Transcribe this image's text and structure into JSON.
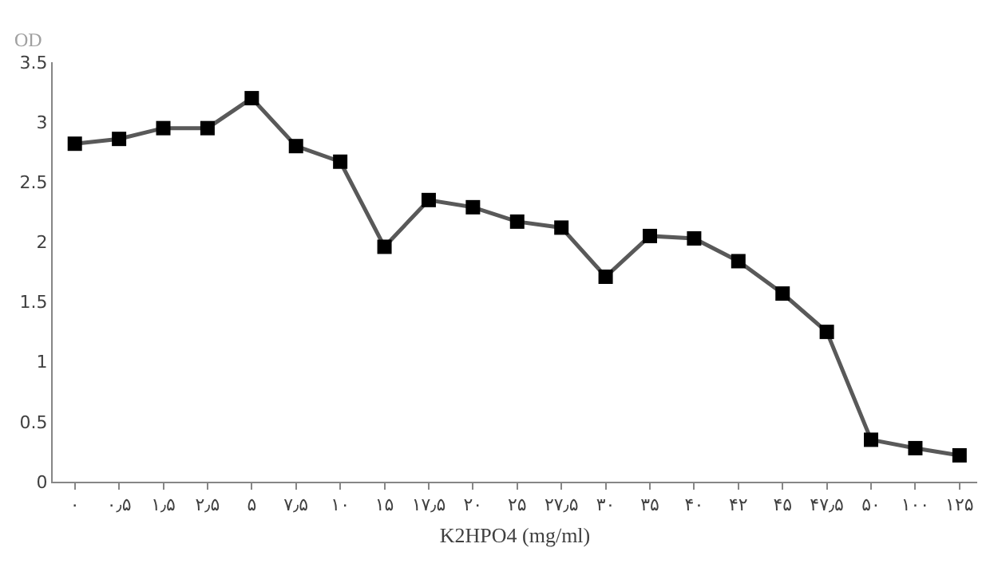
{
  "chart_data": {
    "type": "line",
    "ylabel": "OD",
    "xlabel": "K2HPO4 (mg/ml)",
    "categories": [
      "۰",
      "۰٫۵",
      "۱٫۵",
      "۲٫۵",
      "۵",
      "۷٫۵",
      "۱۰",
      "۱۵",
      "۱۷٫۵",
      "۲۰",
      "۲۵",
      "۲۷٫۵",
      "۳۰",
      "۳۵",
      "۴۰",
      "۴۲",
      "۴۵",
      "۴۷٫۵",
      "۵۰",
      "۱۰۰",
      "۱۲۵"
    ],
    "series": [
      {
        "color": "#595959",
        "values": [
          2.82,
          2.86,
          2.95,
          2.95,
          3.2,
          2.8,
          2.67,
          1.96,
          2.35,
          2.29,
          2.17,
          2.12,
          1.71,
          2.05,
          2.03,
          1.84,
          1.57,
          1.25,
          0.35,
          0.28,
          0.22
        ]
      }
    ],
    "ylim": [
      0,
      3.5
    ],
    "yticks": [
      0,
      0.5,
      1,
      1.5,
      2,
      2.5,
      3,
      3.5
    ],
    "marker": "square",
    "line_style": "solid"
  }
}
